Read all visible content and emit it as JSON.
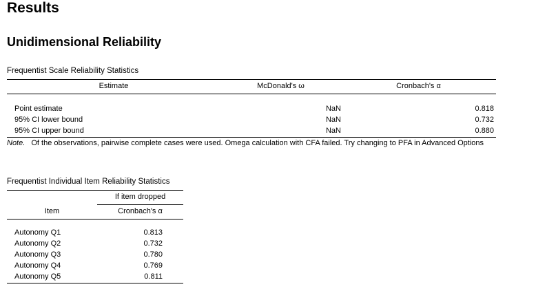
{
  "results_title": "Results",
  "section_title": "Unidimensional Reliability",
  "scale_table": {
    "caption": "Frequentist Scale Reliability Statistics",
    "headers": [
      "Estimate",
      "McDonald's ω",
      "Cronbach's α"
    ],
    "rows": [
      {
        "label": "Point estimate",
        "omega": "NaN",
        "alpha": "0.818"
      },
      {
        "label": "95% CI lower bound",
        "omega": "NaN",
        "alpha": "0.732"
      },
      {
        "label": "95% CI upper bound",
        "omega": "NaN",
        "alpha": "0.880"
      }
    ],
    "note_label": "Note.",
    "note_text": "Of the observations, pairwise complete cases were used. Omega calculation with CFA failed. Try changing to PFA in Advanced Options"
  },
  "item_table": {
    "caption": "Frequentist Individual Item Reliability Statistics",
    "group_header": "If item dropped",
    "headers": [
      "Item",
      "Cronbach's α"
    ],
    "rows": [
      {
        "item": "Autonomy Q1",
        "alpha": "0.813"
      },
      {
        "item": "Autonomy Q2",
        "alpha": "0.732"
      },
      {
        "item": "Autonomy Q3",
        "alpha": "0.780"
      },
      {
        "item": "Autonomy Q4",
        "alpha": "0.769"
      },
      {
        "item": "Autonomy Q5",
        "alpha": "0.811"
      }
    ]
  }
}
